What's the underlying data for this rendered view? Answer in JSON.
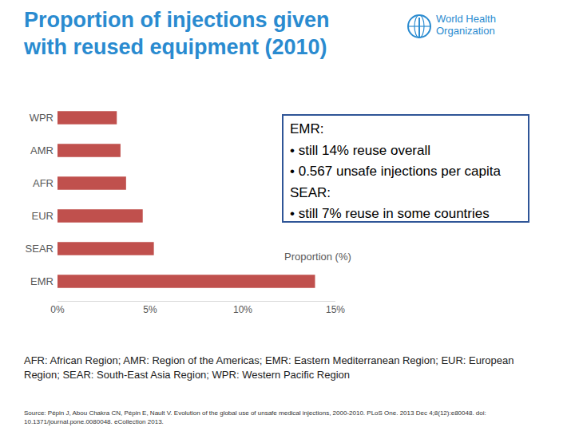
{
  "title_lines": [
    "Proportion of injections given",
    "with reused equipment (2010)"
  ],
  "logo_lines": [
    "World Health",
    "Organization"
  ],
  "chart_data": {
    "type": "bar",
    "orientation": "horizontal",
    "categories": [
      "WPR",
      "AMR",
      "AFR",
      "EUR",
      "SEAR",
      "EMR"
    ],
    "values": [
      3.2,
      3.4,
      3.7,
      4.6,
      5.2,
      13.9
    ],
    "color": "#c0504d",
    "xlim": [
      0,
      15
    ],
    "xticks": [
      {
        "value": 0,
        "label": "0%"
      },
      {
        "value": 5,
        "label": "5%"
      },
      {
        "value": 10,
        "label": "10%"
      },
      {
        "value": 15,
        "label": "15%"
      }
    ],
    "x_label": "Proportion (%)",
    "grid": false,
    "data_labels": false
  },
  "callout": [
    "EMR:",
    "• still 14% reuse overall",
    "• 0.567 unsafe injections per capita",
    "SEAR:",
    "• still 7% reuse in some countries"
  ],
  "footnote": "AFR: African Region; AMR: Region of the Americas; EMR: Eastern Mediterranean Region; EUR: European Region; SEAR: South-East Asia Region; WPR: Western Pacific Region",
  "source": "Source: Pépin J, Abou Chakra CN, Pépin E, Nault V. Evolution of the global use of unsafe medical injections, 2000-2010. PLoS One. 2013 Dec 4;8(12):e80048. doi: 10.1371/journal.pone.0080048. eCollection 2013."
}
